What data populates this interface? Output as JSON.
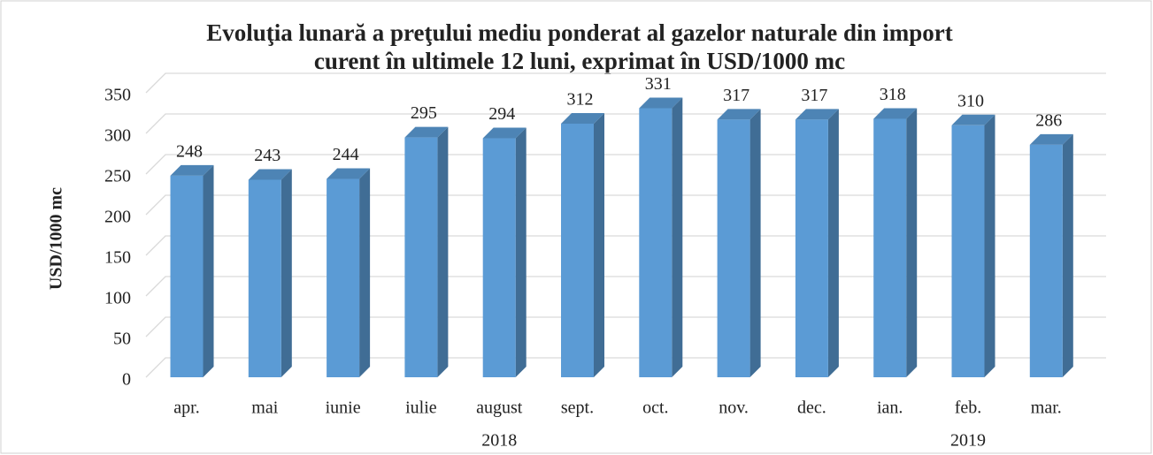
{
  "chart_data": {
    "type": "bar3d",
    "title": [
      "Evoluţia lunară a preţului mediu ponderat al gazelor naturale din import",
      "curent în ultimele 12 luni, exprimat în USD/1000 mc"
    ],
    "ylabel": "USD/1000 mc",
    "categories": [
      "apr.",
      "mai",
      "iunie",
      "iulie",
      "august",
      "sept.",
      "oct.",
      "nov.",
      "dec.",
      "ian.",
      "feb.",
      "mar."
    ],
    "category_groups": [
      {
        "label": "2018",
        "first": 0,
        "last": 8
      },
      {
        "label": "2019",
        "first": 9,
        "last": 11
      }
    ],
    "values": [
      248,
      243,
      244,
      295,
      294,
      312,
      331,
      317,
      317,
      318,
      310,
      286
    ],
    "color": "#5b9bd5",
    "ylim": [
      0,
      350
    ],
    "yticks": [
      0,
      50,
      100,
      150,
      200,
      250,
      300,
      350
    ],
    "grid": true
  }
}
